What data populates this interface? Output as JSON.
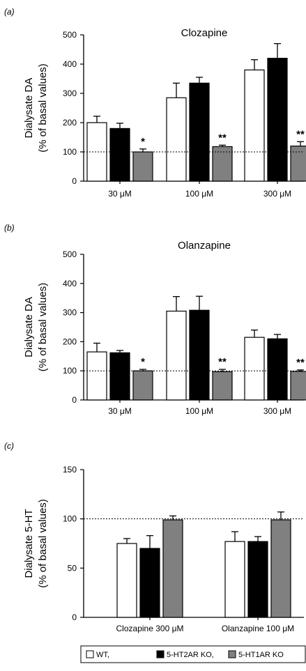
{
  "legend": {
    "items": [
      {
        "label": "WT,",
        "fill": "#ffffff"
      },
      {
        "label": "5-HT2AR KO,",
        "fill": "#000000"
      },
      {
        "label": "5-HT1AR KO",
        "fill": "#808080"
      }
    ]
  },
  "colors": {
    "wt": "#ffffff",
    "ko2a": "#000000",
    "ko1a": "#808080",
    "axis": "#000000"
  },
  "chart_data": [
    {
      "panel": "(a)",
      "type": "bar",
      "title": "Clozapine",
      "ylabel_line1": "Dialysate DA",
      "ylabel_line2": "(% of basal values)",
      "ylim": [
        0,
        500
      ],
      "yticks": [
        0,
        100,
        200,
        300,
        400,
        500
      ],
      "reference_line": 100,
      "categories": [
        "30 μM",
        "100 μM",
        "300 μM"
      ],
      "series": [
        {
          "key": "wt",
          "values": [
            200,
            285,
            380
          ],
          "errors": [
            22,
            50,
            35
          ]
        },
        {
          "key": "ko2a",
          "values": [
            180,
            335,
            420
          ],
          "errors": [
            18,
            20,
            50
          ]
        },
        {
          "key": "ko1a",
          "values": [
            100,
            118,
            120
          ],
          "errors": [
            10,
            5,
            15
          ]
        }
      ],
      "significance": [
        {
          "category": 0,
          "series": 2,
          "text": "*"
        },
        {
          "category": 1,
          "series": 2,
          "text": "**"
        },
        {
          "category": 2,
          "series": 2,
          "text": "**"
        }
      ]
    },
    {
      "panel": "(b)",
      "type": "bar",
      "title": "Olanzapine",
      "ylabel_line1": "Dialysate DA",
      "ylabel_line2": "(% of basal values)",
      "ylim": [
        0,
        500
      ],
      "yticks": [
        0,
        100,
        200,
        300,
        400,
        500
      ],
      "reference_line": 100,
      "categories": [
        "30 μM",
        "100 μM",
        "300 μM"
      ],
      "series": [
        {
          "key": "wt",
          "values": [
            165,
            305,
            215
          ],
          "errors": [
            30,
            50,
            25
          ]
        },
        {
          "key": "ko2a",
          "values": [
            162,
            308,
            210
          ],
          "errors": [
            8,
            48,
            15
          ]
        },
        {
          "key": "ko1a",
          "values": [
            100,
            97,
            98
          ],
          "errors": [
            5,
            8,
            5
          ]
        }
      ],
      "significance": [
        {
          "category": 0,
          "series": 2,
          "text": "*"
        },
        {
          "category": 1,
          "series": 2,
          "text": "**"
        },
        {
          "category": 2,
          "series": 2,
          "text": "**"
        }
      ]
    },
    {
      "panel": "(c)",
      "type": "bar",
      "title": "",
      "ylabel_line1": "Dialysate 5-HT",
      "ylabel_line2": "(% of basal values)",
      "ylim": [
        0,
        150
      ],
      "yticks": [
        0,
        50,
        100,
        150
      ],
      "reference_line": 100,
      "categories": [
        "Clozapine 300 μM",
        "Olanzapine 100 μM"
      ],
      "series": [
        {
          "key": "wt",
          "values": [
            75,
            77
          ],
          "errors": [
            5,
            10
          ]
        },
        {
          "key": "ko2a",
          "values": [
            70,
            77
          ],
          "errors": [
            13,
            5
          ]
        },
        {
          "key": "ko1a",
          "values": [
            99,
            99
          ],
          "errors": [
            4,
            8
          ]
        }
      ],
      "significance": []
    }
  ]
}
